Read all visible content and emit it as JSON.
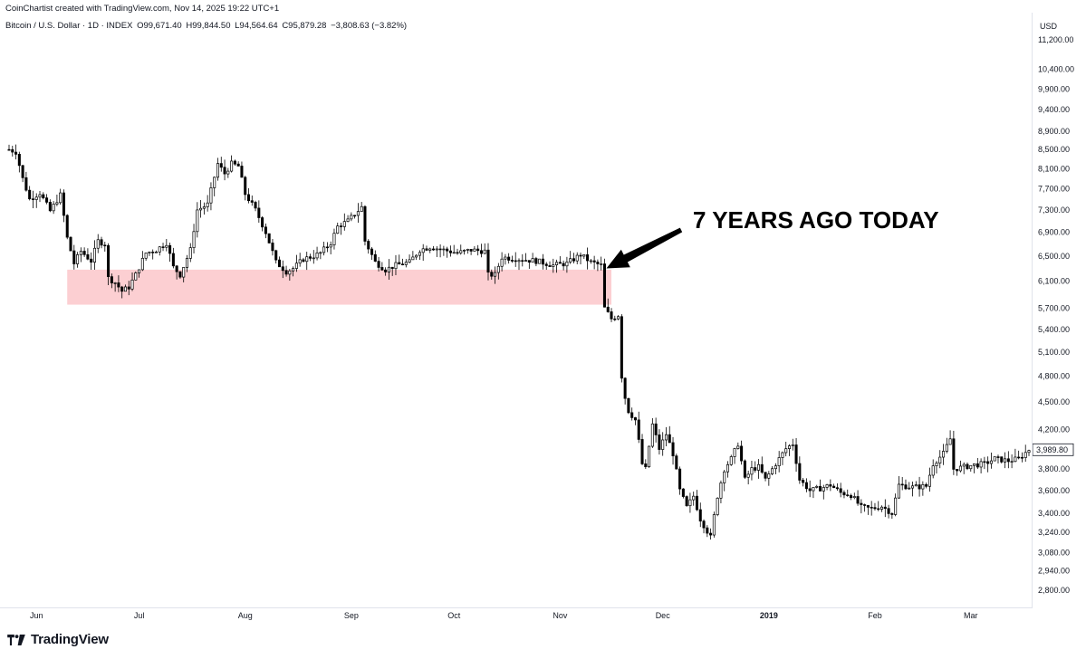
{
  "header": {
    "credit": "CoinChartist created with TradingView.com, Nov 14, 2025 19:22 UTC+1",
    "symbol": "Bitcoin / U.S. Dollar · 1D · INDEX",
    "open": "O99,671.40",
    "high": "H99,844.50",
    "low": "L94,564.64",
    "close": "C95,879.28",
    "change": "−3,808.63 (−3.82%)"
  },
  "footer": {
    "brand": "TradingView"
  },
  "colors": {
    "up": "#ffffff",
    "down": "#000000",
    "outline": "#000000",
    "zone": "#fccacd"
  },
  "chart_data": {
    "type": "candlestick",
    "currency_label": "USD",
    "y_scale": "log",
    "ylim": [
      2700,
      12000
    ],
    "y_ticks": [
      "11,200.00",
      "10,400.00",
      "9,900.00",
      "9,400.00",
      "8,900.00",
      "8,500.00",
      "8,100.00",
      "7,700.00",
      "7,300.00",
      "6,900.00",
      "6,500.00",
      "6,100.00",
      "5,700.00",
      "5,400.00",
      "5,100.00",
      "4,800.00",
      "4,500.00",
      "4,200.00",
      "3,800.00",
      "3,600.00",
      "3,400.00",
      "3,240.00",
      "3,080.00",
      "2,940.00",
      "2,800.00"
    ],
    "x_labels": [
      {
        "label": "Jun",
        "date": "2018-06-01"
      },
      {
        "label": "Jul",
        "date": "2018-07-01"
      },
      {
        "label": "Aug",
        "date": "2018-08-01"
      },
      {
        "label": "Sep",
        "date": "2018-09-01"
      },
      {
        "label": "Oct",
        "date": "2018-10-01"
      },
      {
        "label": "Nov",
        "date": "2018-11-01"
      },
      {
        "label": "Dec",
        "date": "2018-12-01"
      },
      {
        "label": "2019",
        "date": "2019-01-01",
        "bold": true
      },
      {
        "label": "Feb",
        "date": "2019-02-01"
      },
      {
        "label": "Mar",
        "date": "2019-03-01"
      }
    ],
    "last_price": {
      "label": "3,989.80",
      "value": 3989.8
    },
    "annotation": {
      "text": "7 YEARS AGO TODAY",
      "date": "2018-11-14"
    },
    "support_zone": {
      "from": "2018-06-10",
      "to": "2018-11-16",
      "low": 5750,
      "high": 6280
    },
    "x_start": "2018-05-24",
    "x_end": "2019-03-18",
    "anchors": [
      [
        "2018-05-24",
        8500
      ],
      [
        "2018-05-26",
        8450
      ],
      [
        "2018-05-28",
        7900
      ],
      [
        "2018-05-30",
        7500
      ],
      [
        "2018-06-02",
        7620
      ],
      [
        "2018-06-05",
        7280
      ],
      [
        "2018-06-08",
        7580
      ],
      [
        "2018-06-10",
        6800
      ],
      [
        "2018-06-12",
        6380
      ],
      [
        "2018-06-14",
        6580
      ],
      [
        "2018-06-17",
        6420
      ],
      [
        "2018-06-19",
        6750
      ],
      [
        "2018-06-21",
        6700
      ],
      [
        "2018-06-22",
        6150
      ],
      [
        "2018-06-24",
        6080
      ],
      [
        "2018-06-26",
        5950
      ],
      [
        "2018-06-28",
        6010
      ],
      [
        "2018-06-30",
        6200
      ],
      [
        "2018-07-03",
        6550
      ],
      [
        "2018-07-06",
        6600
      ],
      [
        "2018-07-09",
        6720
      ],
      [
        "2018-07-11",
        6320
      ],
      [
        "2018-07-13",
        6200
      ],
      [
        "2018-07-16",
        6600
      ],
      [
        "2018-07-18",
        7300
      ],
      [
        "2018-07-21",
        7400
      ],
      [
        "2018-07-24",
        8200
      ],
      [
        "2018-07-26",
        8000
      ],
      [
        "2018-07-28",
        8200
      ],
      [
        "2018-07-30",
        8150
      ],
      [
        "2018-08-01",
        7600
      ],
      [
        "2018-08-04",
        7300
      ],
      [
        "2018-08-07",
        6900
      ],
      [
        "2018-08-10",
        6400
      ],
      [
        "2018-08-13",
        6250
      ],
      [
        "2018-08-15",
        6300
      ],
      [
        "2018-08-18",
        6450
      ],
      [
        "2018-08-21",
        6500
      ],
      [
        "2018-08-23",
        6550
      ],
      [
        "2018-08-26",
        6720
      ],
      [
        "2018-08-28",
        7000
      ],
      [
        "2018-08-31",
        7100
      ],
      [
        "2018-09-04",
        7350
      ],
      [
        "2018-09-05",
        6750
      ],
      [
        "2018-09-08",
        6400
      ],
      [
        "2018-09-11",
        6280
      ],
      [
        "2018-09-14",
        6350
      ],
      [
        "2018-09-18",
        6400
      ],
      [
        "2018-09-21",
        6600
      ],
      [
        "2018-09-24",
        6650
      ],
      [
        "2018-09-28",
        6600
      ],
      [
        "2018-10-02",
        6550
      ],
      [
        "2018-10-06",
        6600
      ],
      [
        "2018-10-10",
        6580
      ],
      [
        "2018-10-11",
        6200
      ],
      [
        "2018-10-13",
        6200
      ],
      [
        "2018-10-15",
        6480
      ],
      [
        "2018-10-20",
        6450
      ],
      [
        "2018-10-25",
        6420
      ],
      [
        "2018-10-30",
        6350
      ],
      [
        "2018-11-03",
        6380
      ],
      [
        "2018-11-07",
        6520
      ],
      [
        "2018-11-10",
        6400
      ],
      [
        "2018-11-13",
        6350
      ],
      [
        "2018-11-14",
        5700
      ],
      [
        "2018-11-16",
        5550
      ],
      [
        "2018-11-18",
        5600
      ],
      [
        "2018-11-19",
        4800
      ],
      [
        "2018-11-20",
        4550
      ],
      [
        "2018-11-21",
        4400
      ],
      [
        "2018-11-23",
        4300
      ],
      [
        "2018-11-25",
        3850
      ],
      [
        "2018-11-26",
        3800
      ],
      [
        "2018-11-28",
        4250
      ],
      [
        "2018-11-30",
        4000
      ],
      [
        "2018-12-02",
        4150
      ],
      [
        "2018-12-04",
        3950
      ],
      [
        "2018-12-06",
        3600
      ],
      [
        "2018-12-08",
        3450
      ],
      [
        "2018-12-10",
        3550
      ],
      [
        "2018-12-12",
        3350
      ],
      [
        "2018-12-14",
        3250
      ],
      [
        "2018-12-15",
        3200
      ],
      [
        "2018-12-17",
        3550
      ],
      [
        "2018-12-19",
        3800
      ],
      [
        "2018-12-21",
        3900
      ],
      [
        "2018-12-23",
        4050
      ],
      [
        "2018-12-25",
        3700
      ],
      [
        "2018-12-27",
        3800
      ],
      [
        "2018-12-29",
        3820
      ],
      [
        "2018-12-31",
        3700
      ],
      [
        "2019-01-03",
        3850
      ],
      [
        "2019-01-06",
        4000
      ],
      [
        "2019-01-08",
        4050
      ],
      [
        "2019-01-10",
        3700
      ],
      [
        "2019-01-13",
        3600
      ],
      [
        "2019-01-16",
        3620
      ],
      [
        "2019-01-19",
        3650
      ],
      [
        "2019-01-22",
        3580
      ],
      [
        "2019-01-25",
        3560
      ],
      [
        "2019-01-28",
        3450
      ],
      [
        "2019-01-31",
        3440
      ],
      [
        "2019-02-03",
        3460
      ],
      [
        "2019-02-06",
        3400
      ],
      [
        "2019-02-08",
        3650
      ],
      [
        "2019-02-12",
        3630
      ],
      [
        "2019-02-16",
        3640
      ],
      [
        "2019-02-18",
        3850
      ],
      [
        "2019-02-21",
        3950
      ],
      [
        "2019-02-23",
        4100
      ],
      [
        "2019-02-24",
        3800
      ],
      [
        "2019-02-27",
        3820
      ],
      [
        "2019-03-02",
        3840
      ],
      [
        "2019-03-05",
        3850
      ],
      [
        "2019-03-08",
        3900
      ],
      [
        "2019-03-12",
        3880
      ],
      [
        "2019-03-15",
        3900
      ],
      [
        "2019-03-18",
        3990
      ]
    ]
  }
}
